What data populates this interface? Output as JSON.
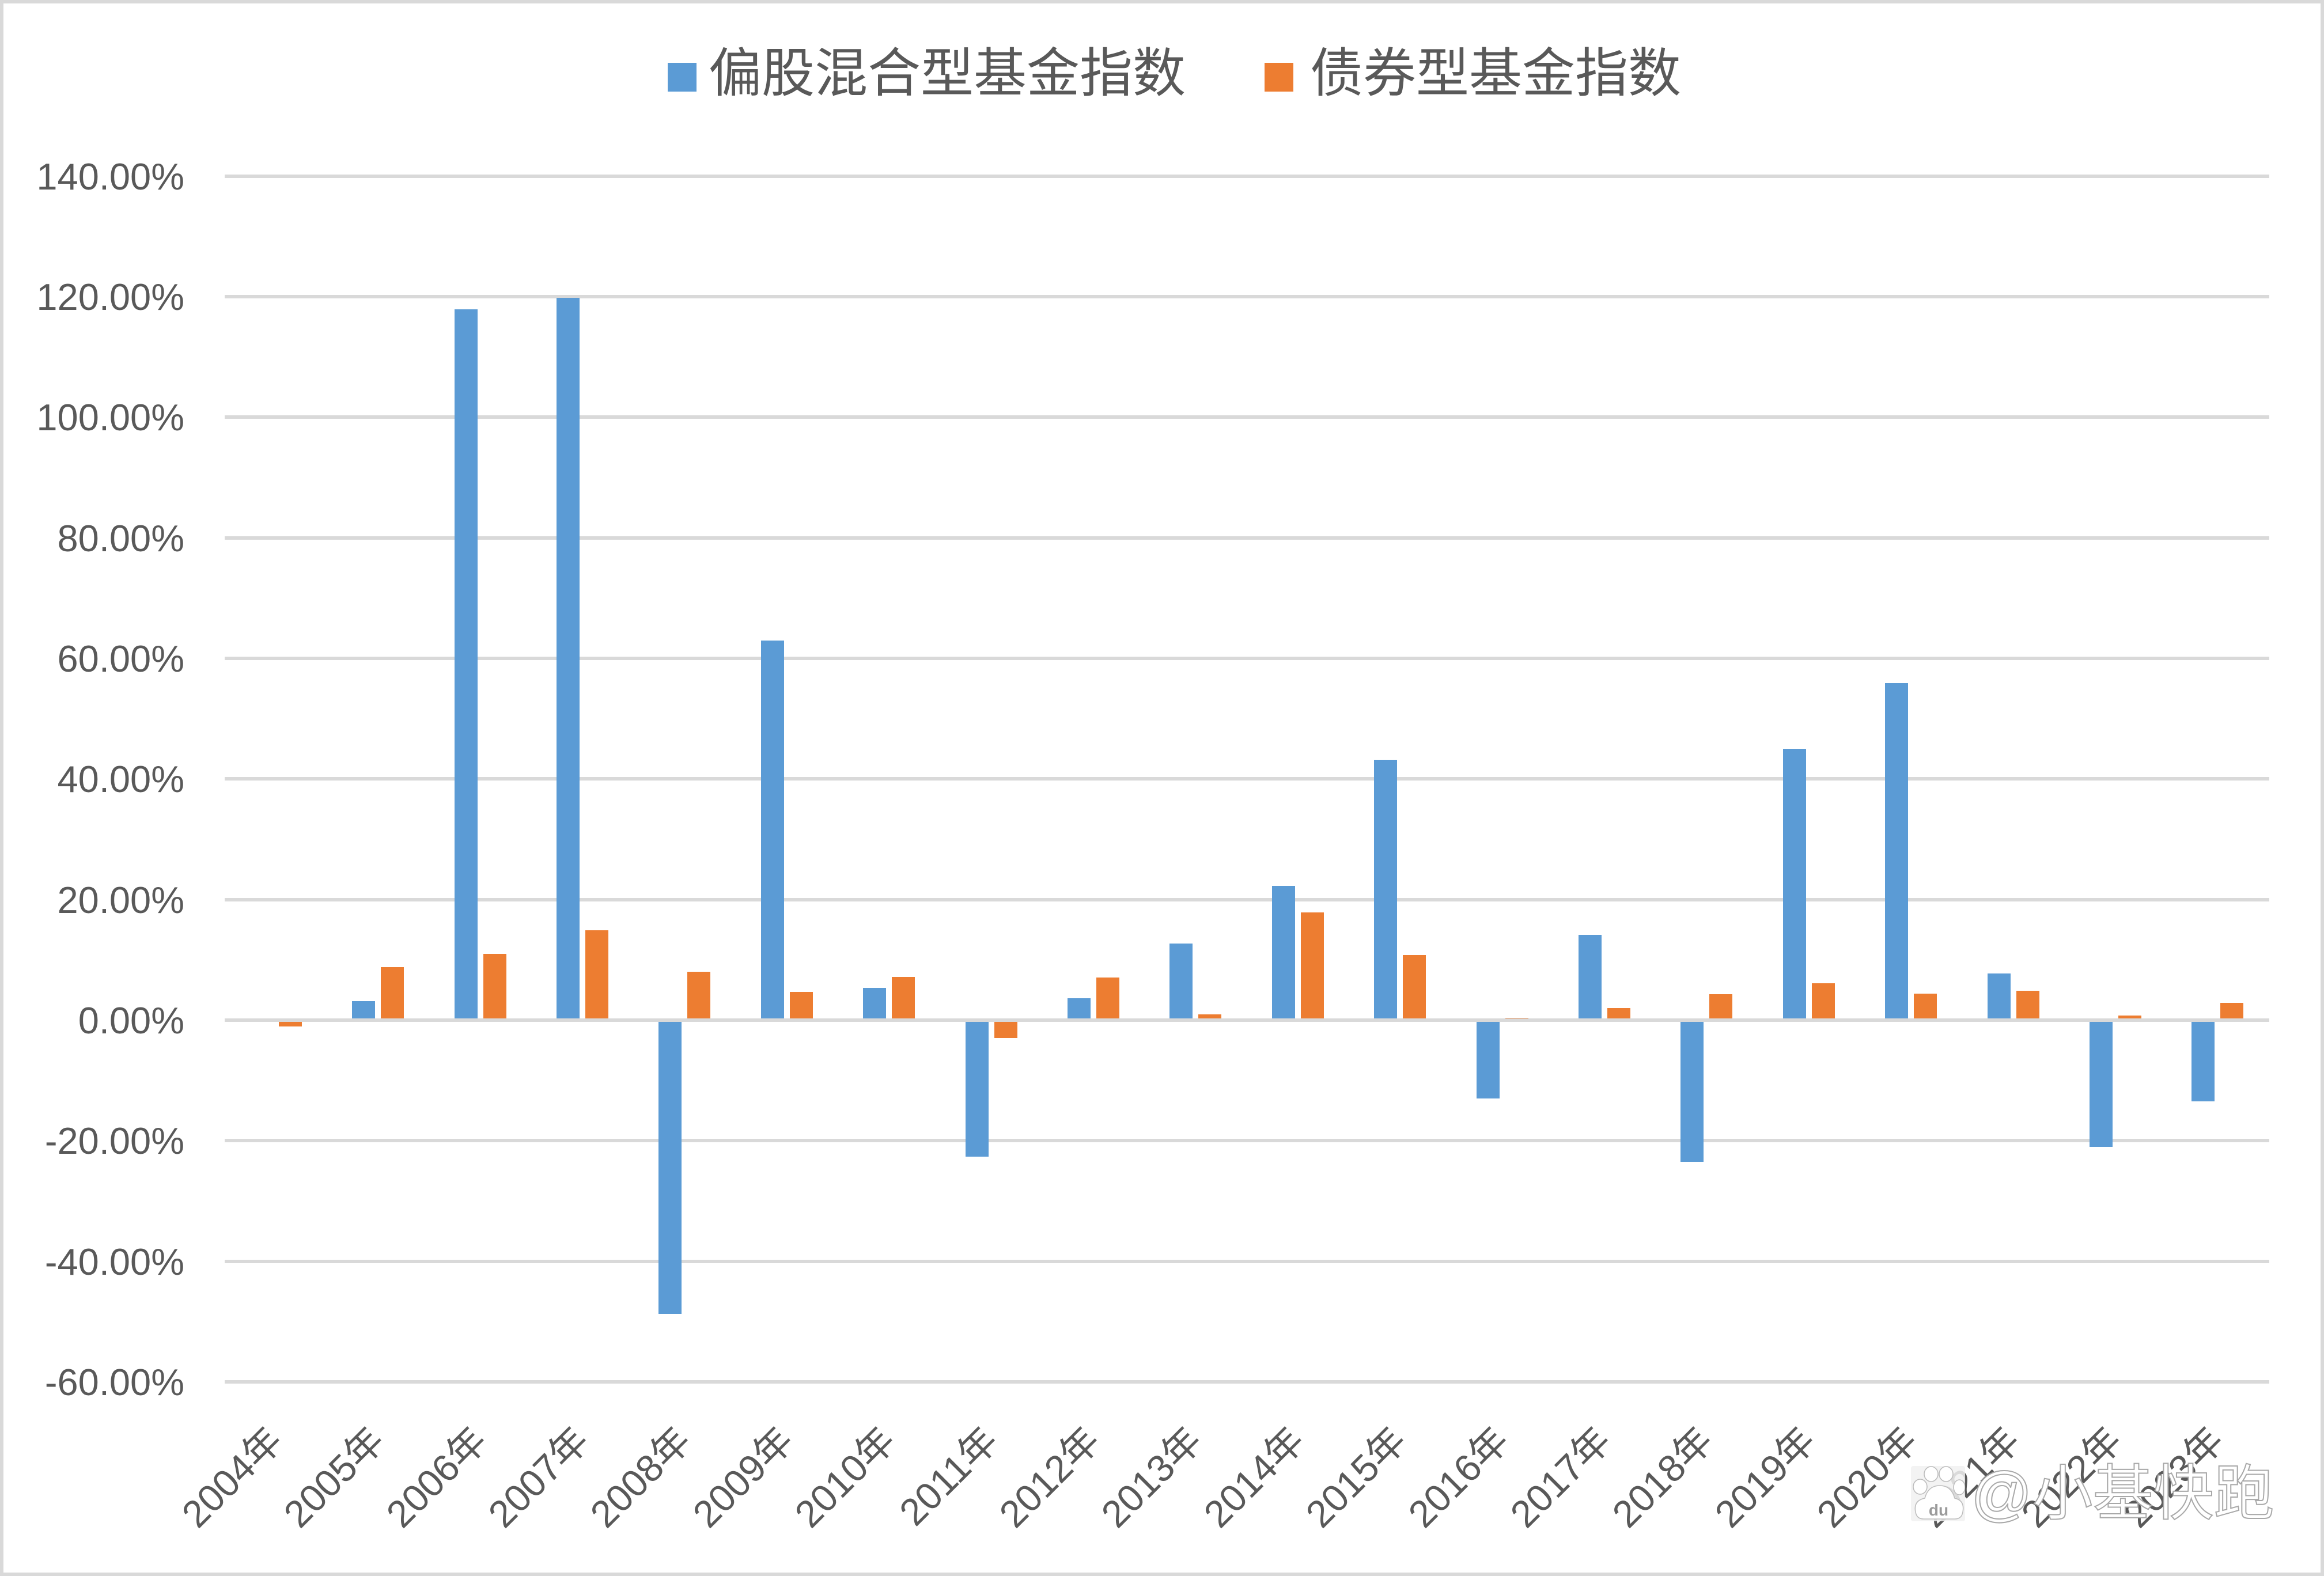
{
  "legend": {
    "items": [
      {
        "label": "偏股混合型基金指数",
        "color": "#5B9BD5"
      },
      {
        "label": "债券型基金指数",
        "color": "#ED7D31"
      }
    ]
  },
  "watermark": {
    "icon": "baidu-paw-icon",
    "icon_text": "du",
    "text": "@小基快跑"
  },
  "chart_data": {
    "type": "bar",
    "title": "",
    "xlabel": "",
    "ylabel": "",
    "categories": [
      "2004年",
      "2005年",
      "2006年",
      "2007年",
      "2008年",
      "2009年",
      "2010年",
      "2011年",
      "2012年",
      "2013年",
      "2014年",
      "2015年",
      "2016年",
      "2017年",
      "2018年",
      "2019年",
      "2020年",
      "2021年",
      "2022年",
      "2023年"
    ],
    "series": [
      {
        "name": "偏股混合型基金指数",
        "color": "#5B9BD5",
        "values": [
          null,
          3.15,
          117.9,
          119.81,
          -48.7,
          62.96,
          5.35,
          -22.64,
          3.63,
          12.71,
          22.26,
          43.18,
          -12.99,
          14.14,
          -23.5,
          45.0,
          55.89,
          7.74,
          -21.02,
          -13.47
        ]
      },
      {
        "name": "债券型基金指数",
        "color": "#ED7D31",
        "values": [
          -1.05,
          8.79,
          10.99,
          14.9,
          8.03,
          4.68,
          7.17,
          -2.93,
          7.07,
          0.96,
          17.87,
          10.8,
          0.38,
          2.01,
          4.3,
          6.11,
          4.39,
          4.87,
          0.76,
          2.87
        ]
      }
    ],
    "units": "percent",
    "ylim": [
      -60,
      140
    ],
    "y_ticks": [
      {
        "value": 140,
        "label": "140.00%"
      },
      {
        "value": 120,
        "label": "120.00%"
      },
      {
        "value": 100,
        "label": "100.00%"
      },
      {
        "value": 80,
        "label": "80.00%"
      },
      {
        "value": 60,
        "label": "60.00%"
      },
      {
        "value": 40,
        "label": "40.00%"
      },
      {
        "value": 20,
        "label": "20.00%"
      },
      {
        "value": 0,
        "label": "0.00%"
      },
      {
        "value": -20,
        "label": "-20.00%"
      },
      {
        "value": -40,
        "label": "-40.00%"
      },
      {
        "value": -60,
        "label": "-60.00%"
      }
    ],
    "grid": true,
    "legend_position": "top",
    "x_label_rotation": -45,
    "gridline_color": "#D9D9D9",
    "text_color": "#595959"
  }
}
